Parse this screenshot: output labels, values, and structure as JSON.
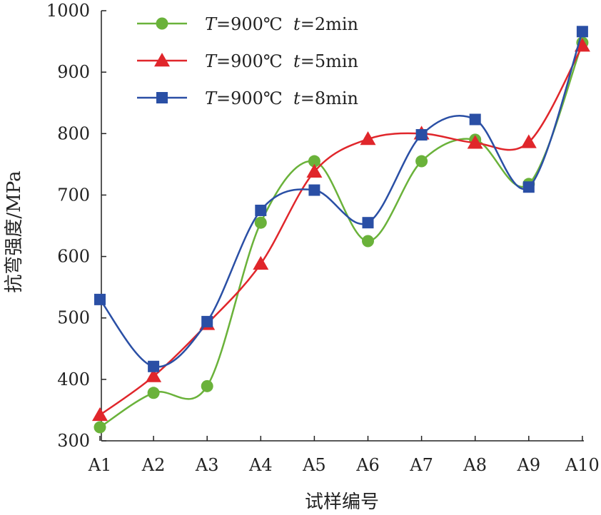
{
  "chart_data": {
    "type": "line",
    "smooth": true,
    "xlabel": "试样编号",
    "ylabel": "抗弯强度/MPa",
    "categories": [
      "A1",
      "A2",
      "A3",
      "A4",
      "A5",
      "A6",
      "A7",
      "A8",
      "A9",
      "A10"
    ],
    "ylim": [
      300,
      1000
    ],
    "yticks": [
      "300",
      "400",
      "500",
      "600",
      "700",
      "800",
      "900",
      "1000"
    ],
    "grid": false,
    "legend_position": "top-left",
    "series": [
      {
        "name": "T=900℃ t=2min",
        "name_parts": {
          "T": "T",
          "temp": "=900℃  ",
          "t": "t",
          "time": "=2min"
        },
        "marker": "circle",
        "color": "#6ab23a",
        "values": [
          322,
          378,
          389,
          655,
          755,
          625,
          755,
          790,
          718,
          948
        ]
      },
      {
        "name": "T=900℃ t=5min",
        "name_parts": {
          "T": "T",
          "temp": "=900℃  ",
          "t": "t",
          "time": "=5min"
        },
        "marker": "triangle",
        "color": "#e0262b",
        "values": [
          342,
          405,
          490,
          588,
          738,
          791,
          800,
          785,
          786,
          943
        ]
      },
      {
        "name": "T=900℃ t=8min",
        "name_parts": {
          "T": "T",
          "temp": "=900℃  ",
          "t": "t",
          "time": "=8min"
        },
        "marker": "square",
        "color": "#2a4fa5",
        "values": [
          530,
          421,
          494,
          675,
          708,
          655,
          798,
          823,
          713,
          966
        ]
      }
    ]
  }
}
